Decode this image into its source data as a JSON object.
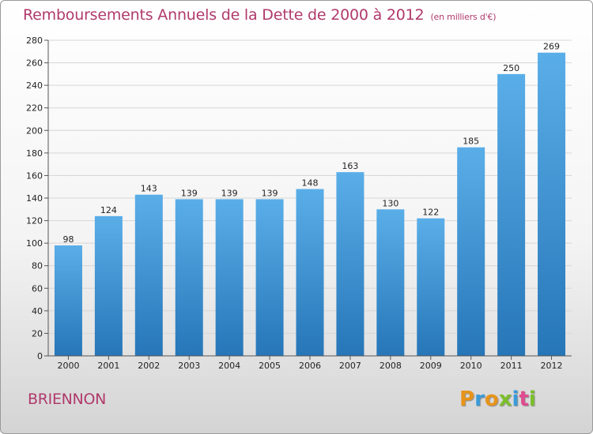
{
  "header": {
    "title": "Remboursements Annuels de la Dette de 2000 à 2012",
    "unit": "(en milliers d'€)"
  },
  "footer": {
    "commune": "BRIENNON",
    "logo_letters": [
      "P",
      "r",
      "o",
      "x",
      "i",
      "t",
      "i"
    ],
    "logo_colors": [
      "#e8941a",
      "#3a9bd9",
      "#e8941a",
      "#7bbf2a",
      "#3a9bd9",
      "#e04b8f",
      "#7bbf2a"
    ]
  },
  "colors": {
    "bar_light": "#5aaee8",
    "bar_dark": "#2676b8",
    "title": "#b03a6c"
  },
  "chart_data": {
    "type": "bar",
    "title": "Remboursements Annuels de la Dette de 2000 à 2012",
    "categories": [
      "2000",
      "2001",
      "2002",
      "2003",
      "2004",
      "2005",
      "2006",
      "2007",
      "2008",
      "2009",
      "2010",
      "2011",
      "2012"
    ],
    "values": [
      98,
      124,
      143,
      139,
      139,
      139,
      148,
      163,
      130,
      122,
      185,
      250,
      269
    ],
    "ylim": [
      0,
      280
    ],
    "yticks": [
      0,
      20,
      40,
      60,
      80,
      100,
      120,
      140,
      160,
      180,
      200,
      220,
      240,
      260,
      280
    ],
    "grid": true,
    "legend": "none"
  }
}
